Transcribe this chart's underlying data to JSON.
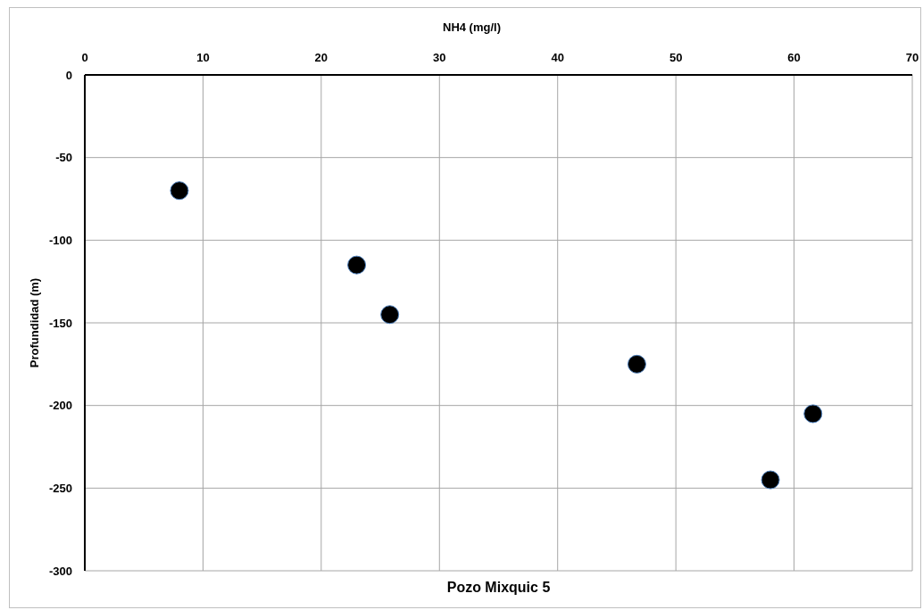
{
  "chart_data": {
    "type": "scatter",
    "title": "Pozo Mixquic 5",
    "xlabel": "NH4 (mg/l)",
    "ylabel": "Profundidad (m)",
    "x": [
      8,
      23,
      25.8,
      46.7,
      61.6,
      58
    ],
    "values": [
      -70,
      -115,
      -145,
      -175,
      -205,
      -245
    ],
    "color": "#000000",
    "marker": "circle",
    "xlim": [
      0,
      70
    ],
    "xticks": [
      0,
      10,
      20,
      30,
      40,
      50,
      60,
      70
    ],
    "ylim": [
      -300,
      0
    ],
    "yticks": [
      -300,
      -250,
      -200,
      -150,
      -100,
      -50,
      0
    ],
    "grid": true
  }
}
